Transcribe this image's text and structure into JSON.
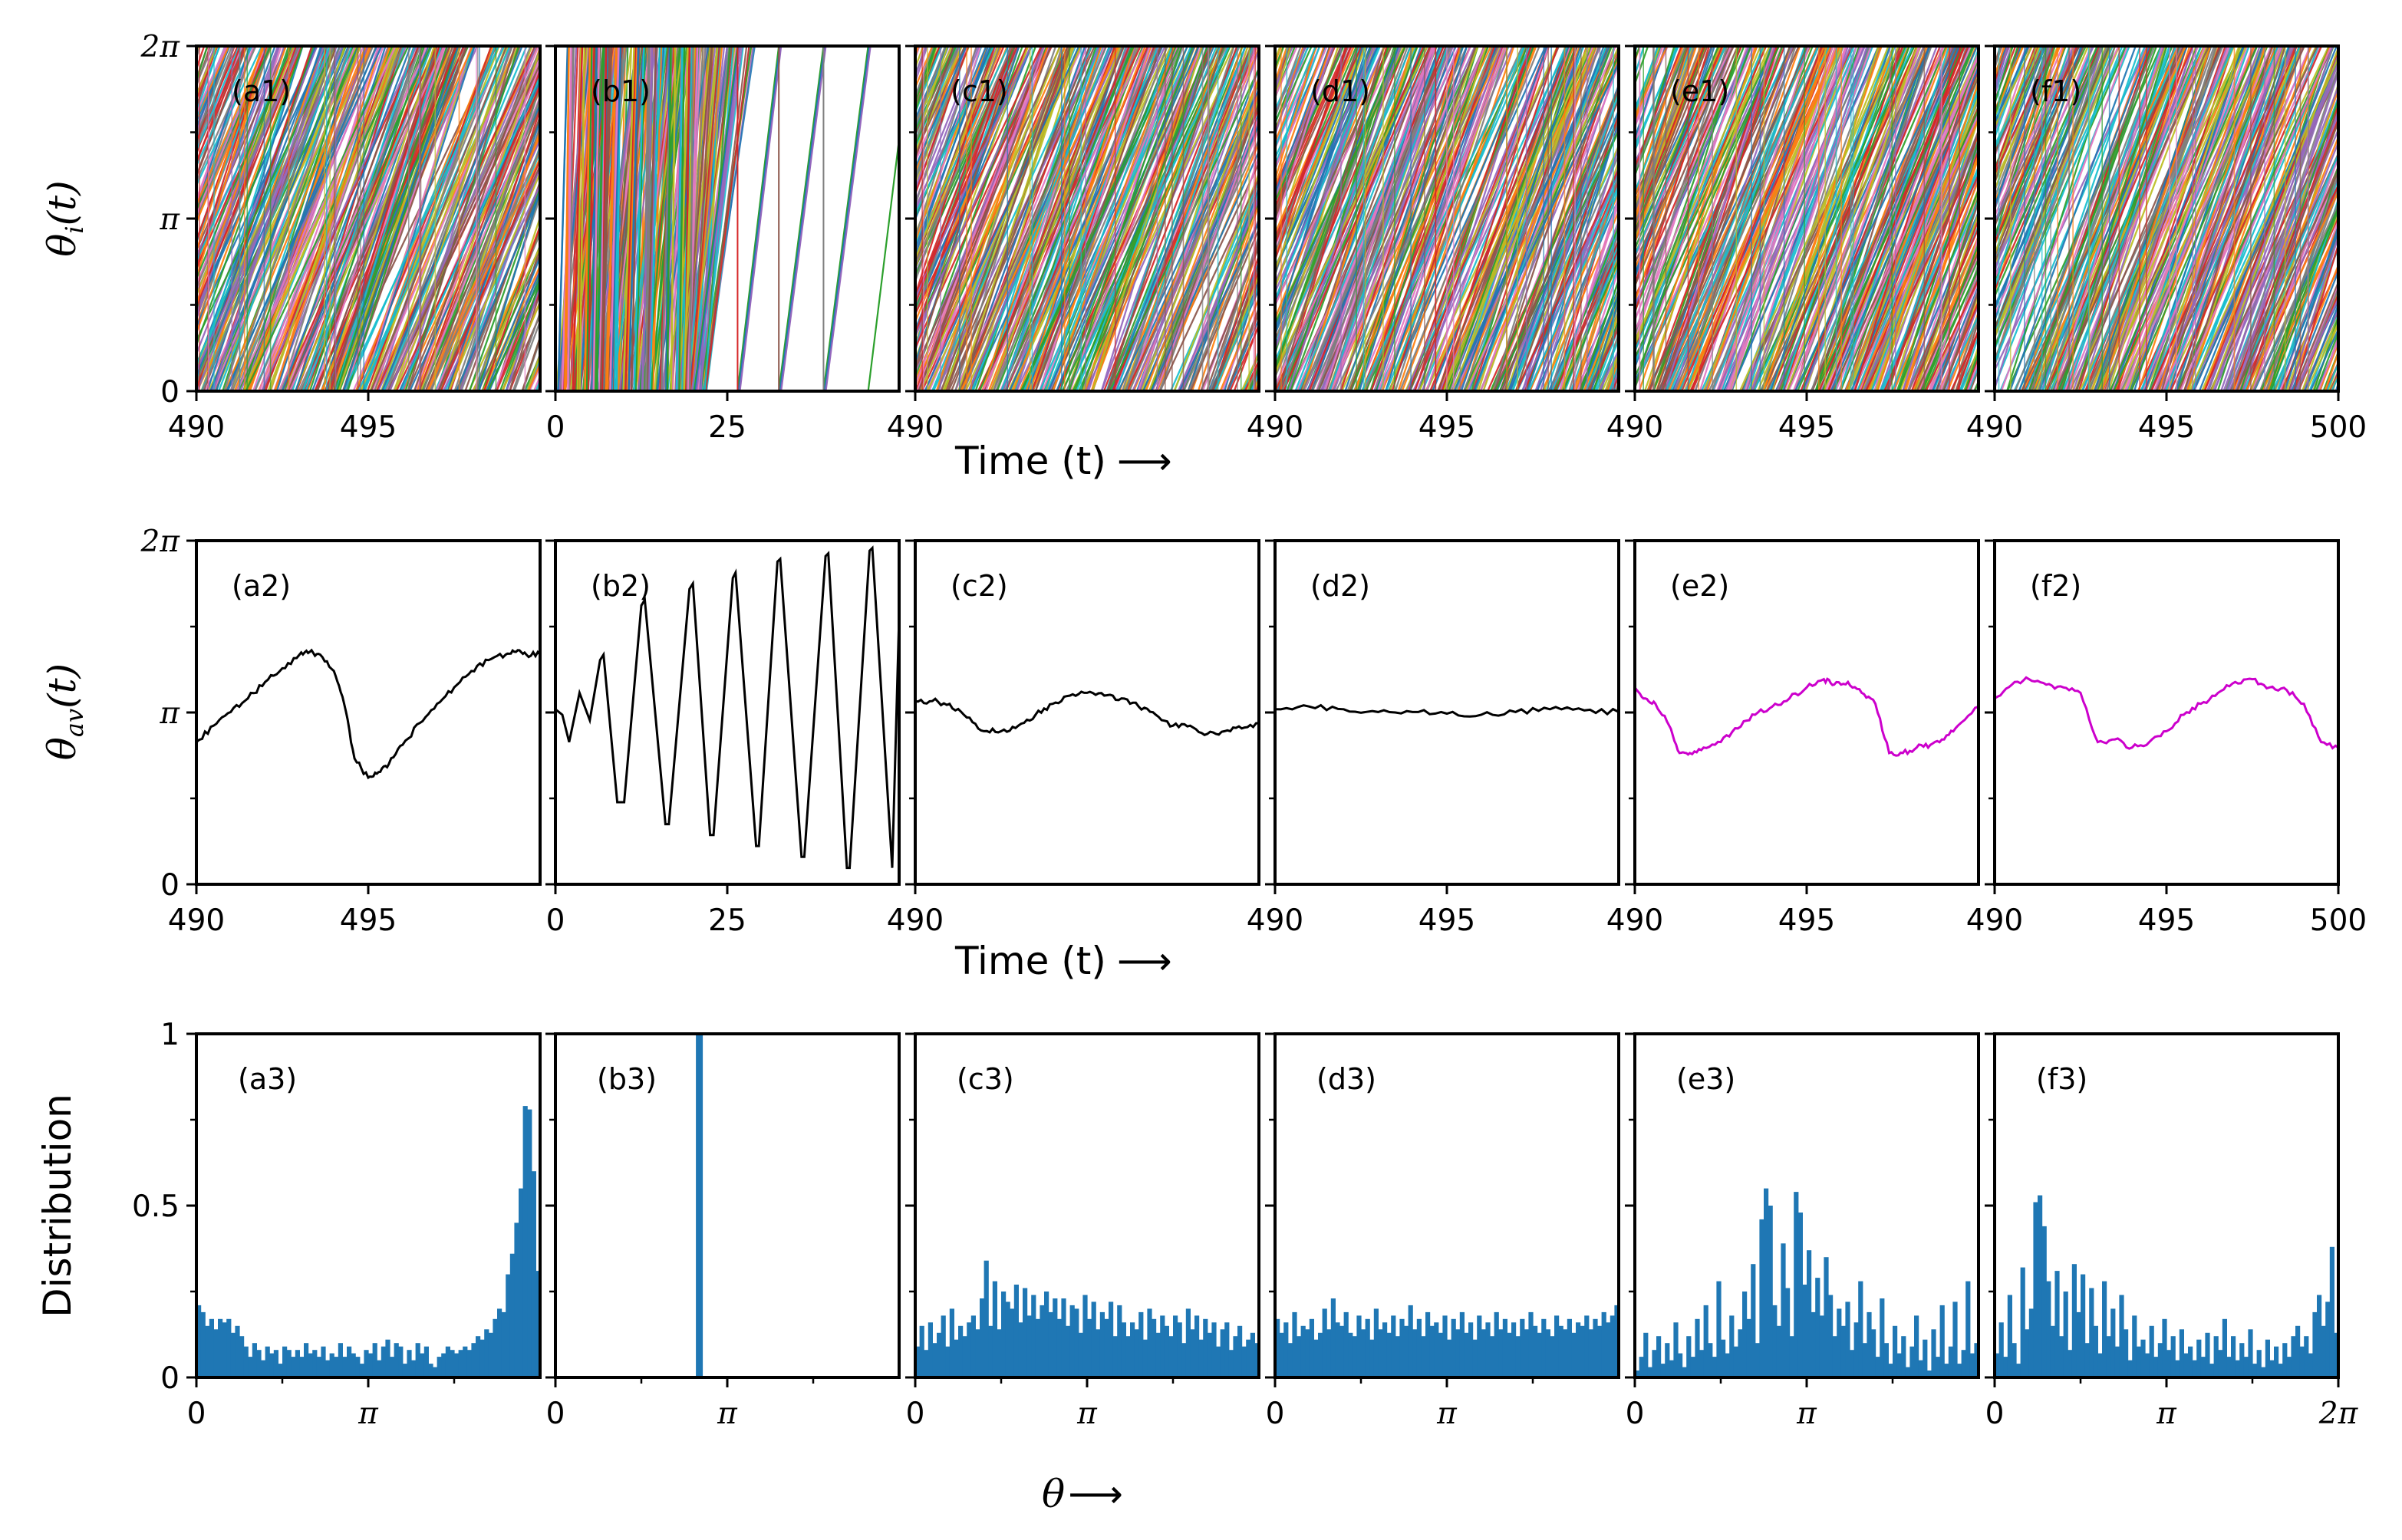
{
  "figure": {
    "row1_ylabel": "θ_i(t)",
    "row2_ylabel": "θ_av(t)",
    "row3_ylabel": "Distribution",
    "time_xlabel": "Time (t)",
    "theta_xlabel": "θ",
    "arrow": "⟶"
  },
  "chart_data": [
    {
      "type": "line",
      "row": 1,
      "description_role": "individual oscillator phases theta_i(t) (many overlapping colored wrapped lines)",
      "ylim": [
        0,
        6.2832
      ],
      "yticks": [
        "0",
        "π",
        "2π"
      ],
      "panels": [
        {
          "label": "(a1)",
          "xlim": [
            490,
            500
          ],
          "xticks": [
            "490",
            "495"
          ],
          "slope": 2.6,
          "colors": [
            "#1f77b4",
            "#ff7f0e",
            "#2ca02c",
            "#d62728",
            "#9467bd",
            "#8c564b",
            "#e377c2",
            "#7f7f7f",
            "#bcbd22",
            "#17becf"
          ]
        },
        {
          "label": "(b1)",
          "xlim": [
            0,
            50
          ],
          "xticks": [
            "0",
            "25"
          ],
          "wrap_times": [
            26.5,
            32.5,
            39.0,
            45.5
          ],
          "colors": [
            "#1f77b4",
            "#ff7f0e",
            "#2ca02c",
            "#d62728",
            "#9467bd",
            "#8c564b",
            "#e377c2",
            "#7f7f7f",
            "#bcbd22",
            "#17becf"
          ]
        },
        {
          "label": "(c1)",
          "xlim": [
            490,
            500
          ],
          "xticks": [
            "490"
          ],
          "slope": 2.6,
          "colors": [
            "#1f77b4",
            "#ff7f0e",
            "#2ca02c",
            "#d62728",
            "#9467bd",
            "#8c564b",
            "#e377c2",
            "#7f7f7f",
            "#bcbd22",
            "#17becf"
          ]
        },
        {
          "label": "(d1)",
          "xlim": [
            490,
            500
          ],
          "xticks": [
            "490",
            "495"
          ],
          "slope": 2.6,
          "colors": [
            "#1f77b4",
            "#ff7f0e",
            "#2ca02c",
            "#d62728",
            "#9467bd",
            "#8c564b",
            "#e377c2",
            "#7f7f7f",
            "#bcbd22",
            "#17becf"
          ]
        },
        {
          "label": "(e1)",
          "xlim": [
            490,
            500
          ],
          "xticks": [
            "490",
            "495"
          ],
          "slope": 2.6,
          "colors": [
            "#1f77b4",
            "#ff7f0e",
            "#2ca02c",
            "#d62728",
            "#9467bd",
            "#8c564b",
            "#e377c2",
            "#7f7f7f",
            "#bcbd22",
            "#17becf"
          ]
        },
        {
          "label": "(f1)",
          "xlim": [
            490,
            500
          ],
          "xticks": [
            "490",
            "495",
            "500"
          ],
          "slope": 2.6,
          "colors": [
            "#1f77b4",
            "#ff7f0e",
            "#2ca02c",
            "#d62728",
            "#9467bd",
            "#8c564b",
            "#e377c2",
            "#7f7f7f",
            "#bcbd22",
            "#17becf"
          ]
        }
      ]
    },
    {
      "type": "line",
      "row": 2,
      "description_role": "average phase theta_av(t)",
      "ylim": [
        0,
        6.2832
      ],
      "yticks": [
        "0",
        "π",
        "2π"
      ],
      "panels": [
        {
          "label": "(a2)",
          "color": "#000000",
          "xlim": [
            490,
            500
          ],
          "xticks": [
            "490",
            "495"
          ],
          "x": [
            490,
            490.5,
            491,
            491.5,
            492,
            492.5,
            493,
            493.3,
            493.6,
            494,
            494.3,
            494.6,
            495,
            495.3,
            495.6,
            496,
            496.5,
            497,
            497.5,
            498,
            498.5,
            499,
            499.3,
            499.6,
            500
          ],
          "y": [
            2.6,
            2.9,
            3.15,
            3.4,
            3.7,
            3.95,
            4.2,
            4.25,
            4.2,
            3.9,
            3.3,
            2.3,
            1.95,
            2.05,
            2.2,
            2.55,
            2.95,
            3.3,
            3.6,
            3.9,
            4.1,
            4.2,
            4.25,
            4.2,
            4.2
          ]
        },
        {
          "label": "(b2)",
          "color": "#000000",
          "xlim": [
            0,
            50
          ],
          "xticks": [
            "0",
            "25"
          ],
          "x": [
            0,
            1,
            2,
            3.5,
            5,
            6.5,
            7,
            9,
            10,
            12.5,
            13,
            16,
            16.5,
            19.5,
            20,
            22.5,
            23,
            25.8,
            26.2,
            29.2,
            29.6,
            32.3,
            32.7,
            35.8,
            36.2,
            39.3,
            39.7,
            42.4,
            42.8,
            45.7,
            46.1,
            49,
            50
          ],
          "y": [
            3.2,
            3.1,
            2.6,
            3.5,
            3.0,
            4.1,
            4.2,
            1.5,
            1.5,
            5.1,
            5.2,
            1.1,
            1.1,
            5.4,
            5.5,
            0.9,
            0.9,
            5.6,
            5.7,
            0.7,
            0.7,
            5.9,
            5.95,
            0.5,
            0.5,
            6.0,
            6.05,
            0.3,
            0.3,
            6.1,
            6.15,
            0.3,
            4.9
          ]
        },
        {
          "label": "(c2)",
          "color": "#000000",
          "xlim": [
            490,
            500
          ],
          "xticks": [
            "490"
          ],
          "x": [
            490,
            490.5,
            491,
            491.5,
            492,
            492.5,
            493,
            493.5,
            494,
            494.5,
            495,
            495.5,
            496,
            496.5,
            497,
            497.5,
            498,
            498.5,
            499,
            499.5,
            500
          ],
          "y": [
            3.35,
            3.35,
            3.3,
            3.05,
            2.8,
            2.8,
            2.9,
            3.1,
            3.3,
            3.45,
            3.5,
            3.45,
            3.4,
            3.25,
            3.1,
            2.9,
            2.9,
            2.75,
            2.8,
            2.85,
            2.95
          ]
        },
        {
          "label": "(d2)",
          "color": "#000000",
          "xlim": [
            490,
            500
          ],
          "xticks": [
            "490",
            "495"
          ],
          "x": [
            490,
            491,
            492,
            493,
            494,
            495,
            496,
            497,
            498,
            499,
            500
          ],
          "y": [
            3.2,
            3.25,
            3.2,
            3.15,
            3.15,
            3.12,
            3.1,
            3.15,
            3.2,
            3.18,
            3.15
          ]
        },
        {
          "label": "(e2)",
          "color": "#cc00cc",
          "xlim": [
            490,
            500
          ],
          "xticks": [
            "490",
            "495"
          ],
          "x": [
            490,
            490.3,
            490.6,
            491,
            491.3,
            491.6,
            492,
            492.5,
            493,
            493.5,
            494,
            494.5,
            495,
            495.5,
            495.8,
            496.2,
            496.6,
            497,
            497.4,
            497.8,
            498.2,
            498.6,
            499,
            499.4,
            500
          ],
          "y": [
            3.6,
            3.4,
            3.3,
            2.9,
            2.4,
            2.4,
            2.5,
            2.6,
            2.85,
            3.1,
            3.25,
            3.4,
            3.6,
            3.75,
            3.65,
            3.7,
            3.5,
            3.3,
            2.4,
            2.4,
            2.5,
            2.55,
            2.65,
            2.9,
            3.25
          ]
        },
        {
          "label": "(f2)",
          "color": "#cc00cc",
          "xlim": [
            490,
            500
          ],
          "xticks": [
            "490",
            "495",
            "500"
          ],
          "x": [
            490,
            490.5,
            491,
            491.5,
            492,
            492.5,
            493,
            493.5,
            494,
            494.5,
            495,
            495.5,
            496,
            496.5,
            497,
            497.5,
            498,
            498.5,
            499,
            499.5,
            500
          ],
          "y": [
            3.4,
            3.65,
            3.75,
            3.65,
            3.6,
            3.5,
            2.6,
            2.65,
            2.5,
            2.6,
            2.8,
            3.1,
            3.3,
            3.5,
            3.7,
            3.75,
            3.6,
            3.55,
            3.3,
            2.6,
            2.5
          ]
        }
      ]
    },
    {
      "type": "bar",
      "row": 3,
      "description_role": "histogram of phases over [0, 2π], 80 bins",
      "color": "#1f77b4",
      "ylim": [
        0,
        1
      ],
      "yticks": [
        "0",
        "0.5",
        "1"
      ],
      "xticks": [
        "0",
        "π",
        "2π"
      ],
      "panels": [
        {
          "label": "(a3)",
          "values": [
            0.21,
            0.19,
            0.15,
            0.17,
            0.14,
            0.17,
            0.16,
            0.17,
            0.13,
            0.15,
            0.12,
            0.09,
            0.06,
            0.1,
            0.08,
            0.05,
            0.09,
            0.07,
            0.08,
            0.04,
            0.09,
            0.08,
            0.06,
            0.08,
            0.06,
            0.1,
            0.07,
            0.08,
            0.06,
            0.09,
            0.05,
            0.07,
            0.06,
            0.1,
            0.06,
            0.09,
            0.07,
            0.06,
            0.04,
            0.08,
            0.07,
            0.1,
            0.05,
            0.09,
            0.11,
            0.06,
            0.1,
            0.09,
            0.04,
            0.08,
            0.05,
            0.1,
            0.07,
            0.09,
            0.04,
            0.03,
            0.06,
            0.07,
            0.09,
            0.08,
            0.07,
            0.08,
            0.09,
            0.08,
            0.1,
            0.12,
            0.11,
            0.14,
            0.13,
            0.17,
            0.2,
            0.19,
            0.3,
            0.36,
            0.45,
            0.55,
            0.79,
            0.78,
            0.6,
            0.31
          ]
        },
        {
          "label": "(b3)",
          "values": [
            0,
            0,
            0,
            0,
            0,
            0,
            0,
            0,
            0,
            0,
            0,
            0,
            0,
            0,
            0,
            0,
            0,
            0,
            0,
            0,
            0,
            0,
            0,
            0,
            0,
            0,
            0,
            0,
            0,
            0,
            0,
            0,
            0,
            1.0,
            0,
            0,
            0,
            0,
            0,
            0,
            0,
            0,
            0,
            0,
            0,
            0,
            0,
            0,
            0,
            0,
            0,
            0,
            0,
            0,
            0,
            0,
            0,
            0,
            0,
            0,
            0,
            0,
            0,
            0,
            0,
            0,
            0,
            0,
            0,
            0,
            0,
            0,
            0,
            0,
            0,
            0,
            0,
            0,
            0,
            0
          ]
        },
        {
          "label": "(c3)",
          "values": [
            0.09,
            0.15,
            0.08,
            0.16,
            0.1,
            0.13,
            0.18,
            0.09,
            0.2,
            0.11,
            0.15,
            0.12,
            0.16,
            0.18,
            0.14,
            0.23,
            0.34,
            0.15,
            0.28,
            0.14,
            0.25,
            0.22,
            0.2,
            0.27,
            0.16,
            0.26,
            0.18,
            0.24,
            0.17,
            0.21,
            0.25,
            0.19,
            0.23,
            0.17,
            0.23,
            0.15,
            0.21,
            0.2,
            0.13,
            0.24,
            0.17,
            0.22,
            0.14,
            0.19,
            0.17,
            0.22,
            0.12,
            0.21,
            0.16,
            0.12,
            0.16,
            0.14,
            0.19,
            0.11,
            0.2,
            0.17,
            0.13,
            0.18,
            0.15,
            0.12,
            0.18,
            0.16,
            0.1,
            0.2,
            0.14,
            0.18,
            0.11,
            0.17,
            0.13,
            0.16,
            0.09,
            0.14,
            0.16,
            0.08,
            0.12,
            0.15,
            0.09,
            0.11,
            0.13,
            0.1
          ]
        },
        {
          "label": "(d3)",
          "values": [
            0.17,
            0.13,
            0.16,
            0.1,
            0.19,
            0.12,
            0.15,
            0.14,
            0.17,
            0.11,
            0.13,
            0.2,
            0.14,
            0.23,
            0.16,
            0.15,
            0.19,
            0.13,
            0.12,
            0.18,
            0.14,
            0.17,
            0.11,
            0.2,
            0.14,
            0.16,
            0.13,
            0.18,
            0.12,
            0.17,
            0.15,
            0.21,
            0.14,
            0.17,
            0.12,
            0.19,
            0.15,
            0.16,
            0.13,
            0.18,
            0.11,
            0.17,
            0.14,
            0.19,
            0.13,
            0.16,
            0.11,
            0.18,
            0.14,
            0.16,
            0.12,
            0.19,
            0.14,
            0.17,
            0.13,
            0.16,
            0.12,
            0.17,
            0.14,
            0.19,
            0.15,
            0.13,
            0.17,
            0.14,
            0.12,
            0.18,
            0.15,
            0.14,
            0.17,
            0.13,
            0.16,
            0.15,
            0.18,
            0.14,
            0.17,
            0.15,
            0.19,
            0.16,
            0.18,
            0.21
          ]
        },
        {
          "label": "(e3)",
          "values": [
            0.02,
            0.06,
            0.13,
            0.03,
            0.08,
            0.12,
            0.04,
            0.1,
            0.05,
            0.16,
            0.07,
            0.03,
            0.12,
            0.06,
            0.17,
            0.08,
            0.21,
            0.1,
            0.06,
            0.28,
            0.11,
            0.07,
            0.18,
            0.09,
            0.14,
            0.25,
            0.17,
            0.33,
            0.1,
            0.46,
            0.55,
            0.5,
            0.21,
            0.15,
            0.39,
            0.26,
            0.12,
            0.54,
            0.48,
            0.27,
            0.37,
            0.19,
            0.29,
            0.18,
            0.35,
            0.24,
            0.12,
            0.2,
            0.15,
            0.22,
            0.08,
            0.16,
            0.28,
            0.1,
            0.19,
            0.14,
            0.06,
            0.23,
            0.1,
            0.04,
            0.15,
            0.07,
            0.12,
            0.03,
            0.09,
            0.18,
            0.05,
            0.11,
            0.02,
            0.14,
            0.06,
            0.21,
            0.04,
            0.09,
            0.22,
            0.04,
            0.08,
            0.28,
            0.07,
            0.1
          ]
        },
        {
          "label": "(f3)",
          "values": [
            0.07,
            0.16,
            0.06,
            0.24,
            0.1,
            0.04,
            0.32,
            0.14,
            0.2,
            0.51,
            0.53,
            0.44,
            0.28,
            0.15,
            0.31,
            0.12,
            0.25,
            0.08,
            0.33,
            0.19,
            0.3,
            0.1,
            0.26,
            0.15,
            0.07,
            0.28,
            0.12,
            0.2,
            0.09,
            0.24,
            0.14,
            0.05,
            0.18,
            0.09,
            0.11,
            0.07,
            0.15,
            0.06,
            0.1,
            0.17,
            0.08,
            0.12,
            0.05,
            0.14,
            0.07,
            0.09,
            0.05,
            0.11,
            0.06,
            0.13,
            0.04,
            0.12,
            0.08,
            0.17,
            0.06,
            0.12,
            0.05,
            0.1,
            0.06,
            0.14,
            0.04,
            0.08,
            0.03,
            0.11,
            0.05,
            0.09,
            0.04,
            0.1,
            0.06,
            0.12,
            0.15,
            0.09,
            0.12,
            0.07,
            0.19,
            0.24,
            0.15,
            0.22,
            0.38,
            0.13
          ]
        }
      ]
    }
  ]
}
